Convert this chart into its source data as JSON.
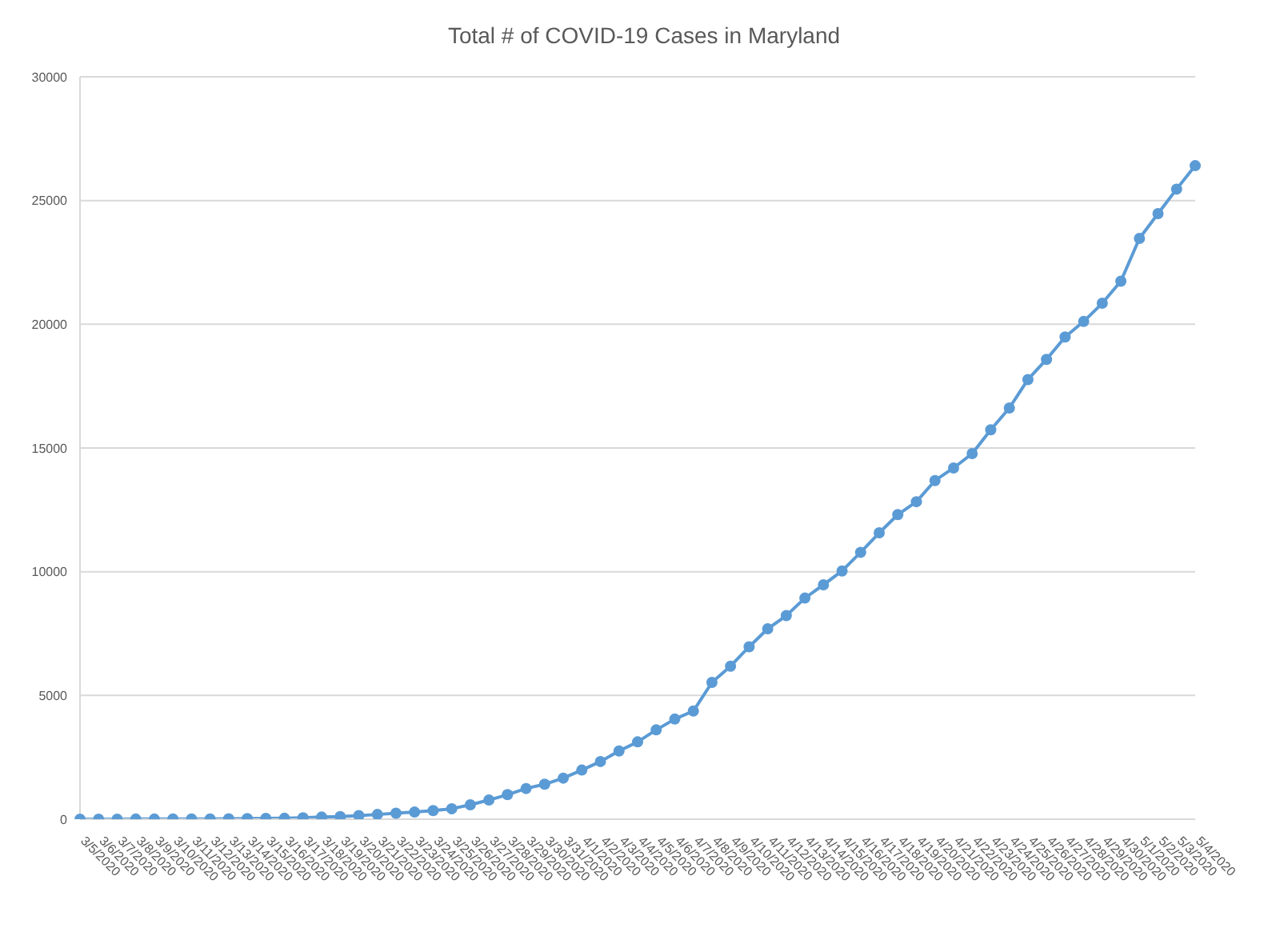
{
  "chart_data": {
    "type": "line",
    "title": "Total # of COVID-19 Cases in Maryland",
    "categories": [
      "3/5/2020",
      "3/6/2020",
      "3/7/2020",
      "3/8/2020",
      "3/9/2020",
      "3/10/2020",
      "3/11/2020",
      "3/12/2020",
      "3/13/2020",
      "3/14/2020",
      "3/15/2020",
      "3/16/2020",
      "3/17/2020",
      "3/18/2020",
      "3/19/2020",
      "3/20/2020",
      "3/21/2020",
      "3/22/2020",
      "3/23/2020",
      "3/24/2020",
      "3/25/2020",
      "3/26/2020",
      "3/27/2020",
      "3/28/2020",
      "3/29/2020",
      "3/30/2020",
      "3/31/2020",
      "4/1/2020",
      "4/2/2020",
      "4/3/2020",
      "4/4/2020",
      "4/5/2020",
      "4/6/2020",
      "4/7/2020",
      "4/8/2020",
      "4/9/2020",
      "4/10/2020",
      "4/11/2020",
      "4/12/2020",
      "4/13/2020",
      "4/14/2020",
      "4/15/2020",
      "4/16/2020",
      "4/17/2020",
      "4/18/2020",
      "4/19/2020",
      "4/20/2020",
      "4/21/2020",
      "4/22/2020",
      "4/23/2020",
      "4/24/2020",
      "4/25/2020",
      "4/26/2020",
      "4/27/2020",
      "4/28/2020",
      "4/29/2020",
      "4/30/2020",
      "5/1/2020",
      "5/2/2020",
      "5/3/2020",
      "5/4/2020"
    ],
    "series": [
      {
        "color": "#5b9bd5",
        "values": [
          3,
          3,
          3,
          5,
          5,
          6,
          9,
          12,
          17,
          26,
          31,
          37,
          57,
          85,
          107,
          149,
          190,
          244,
          288,
          349,
          423,
          580,
          774,
          992,
          1239,
          1413,
          1660,
          1985,
          2331,
          2758,
          3125,
          3609,
          4045,
          4371,
          5529,
          6185,
          6968,
          7694,
          8225,
          8936,
          9472,
          10032,
          10784,
          11572,
          12308,
          12830,
          13684,
          14193,
          14775,
          15737,
          16616,
          17766,
          18581,
          19487,
          20113,
          20849,
          21742,
          23472,
          24473,
          25462,
          26408
        ]
      }
    ],
    "ylim": [
      0,
      30000
    ],
    "yticks": [
      0,
      5000,
      10000,
      15000,
      20000,
      25000,
      30000
    ],
    "grid": "y",
    "marker": "circle",
    "line_style": "solid"
  }
}
